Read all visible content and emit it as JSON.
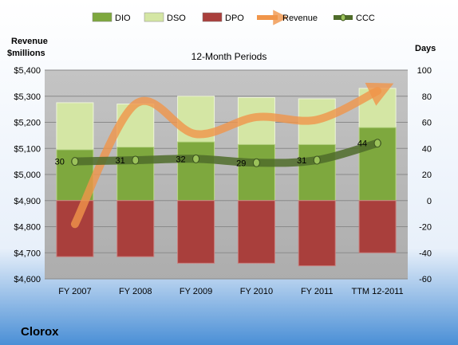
{
  "company": "Clorox",
  "chart_data": {
    "type": "bar",
    "title": "12-Month Periods",
    "categories": [
      "FY 2007",
      "FY 2008",
      "FY 2009",
      "FY 2010",
      "FY 2011",
      "TTM 12-2011"
    ],
    "left_axis": {
      "label_line1": "Revenue",
      "label_line2": "$millions",
      "ylim": [
        4600,
        5400
      ],
      "ticks": [
        4600,
        4700,
        4800,
        4900,
        5000,
        5100,
        5200,
        5300,
        5400
      ],
      "tick_labels": [
        "$4,600",
        "$4,700",
        "$4,800",
        "$4,900",
        "$5,000",
        "$5,100",
        "$5,200",
        "$5,300",
        "$5,400"
      ]
    },
    "right_axis": {
      "label": "Days",
      "ylim": [
        -60,
        100
      ],
      "ticks": [
        -60,
        -40,
        -20,
        0,
        20,
        40,
        60,
        80,
        100
      ],
      "tick_labels": [
        "-60",
        "-40",
        "-20",
        "0",
        "20",
        "40",
        "60",
        "80",
        "100"
      ]
    },
    "stacked_series": [
      {
        "name": "DIO",
        "axis": "right",
        "color": "#7ea83e",
        "values": [
          39,
          41,
          45,
          43,
          43,
          56
        ]
      },
      {
        "name": "DSO",
        "axis": "right",
        "color": "#d4e6a4",
        "values": [
          36,
          33,
          35,
          36,
          35,
          30
        ]
      },
      {
        "name": "DPO",
        "axis": "right",
        "color": "#a93f3c",
        "values": [
          -43,
          -43,
          -48,
          -48,
          -50,
          -40
        ]
      }
    ],
    "line_series": [
      {
        "name": "Revenue",
        "axis": "left",
        "color": "#f0954a",
        "values": [
          4810,
          5270,
          5155,
          5220,
          5210,
          5320
        ]
      },
      {
        "name": "CCC",
        "axis": "right",
        "color": "#4f6c2a",
        "values": [
          30,
          31,
          32,
          29,
          31,
          44
        ]
      }
    ],
    "data_labels": {
      "series": "CCC",
      "labels": [
        "30",
        "31",
        "32",
        "29",
        "31",
        "44"
      ]
    },
    "legend": {
      "position": "top",
      "items": [
        "DIO",
        "DSO",
        "DPO",
        "Revenue",
        "CCC"
      ]
    },
    "grid": true,
    "plot_background": "#b8b8b8",
    "page_gradient": [
      "#ffffff",
      "#4a8fd6"
    ]
  }
}
